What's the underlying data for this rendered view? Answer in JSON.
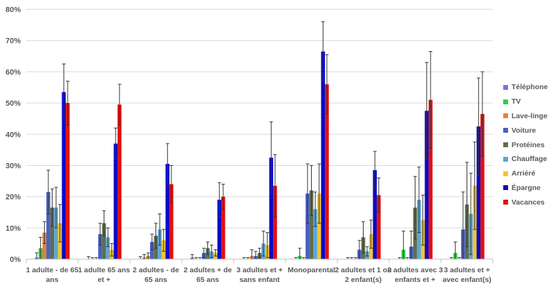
{
  "chart_data": {
    "type": "bar",
    "title": "",
    "xlabel": "",
    "ylabel": "",
    "ylim": [
      0,
      80
    ],
    "y_ticks": [
      "0%",
      "10%",
      "20%",
      "30%",
      "40%",
      "50%",
      "60%",
      "70%",
      "80%"
    ],
    "grid": true,
    "legend_position": "right",
    "categories": [
      [
        "1 adulte - de 65",
        "ans"
      ],
      [
        "1 adulte 65 ans",
        "et +"
      ],
      [
        "2 adultes - de",
        "65 ans"
      ],
      [
        "2 adultes + de",
        "65 ans"
      ],
      [
        "3 adultes et +",
        "sans enfant"
      ],
      [
        "Monoparental"
      ],
      [
        "2 adultes et 1 ou",
        "2 enfant(s)"
      ],
      [
        "2 adultes avec 3",
        "enfants et +"
      ],
      [
        "3 adultes et +",
        "avec enfant(s)"
      ]
    ],
    "series": [
      {
        "name": "Téléphone",
        "color": "#8e6bd8",
        "values": [
          0.5,
          0.0,
          0.0,
          0.5,
          0.0,
          0.0,
          0.0,
          0.0,
          0.0
        ],
        "errors": [
          1.5,
          0.8,
          0.8,
          1.0,
          0.5,
          0.5,
          0.5,
          0.5,
          0.5
        ]
      },
      {
        "name": "TV",
        "color": "#2ecc4a",
        "values": [
          3.5,
          0.0,
          0.5,
          0.0,
          0.0,
          1.0,
          0.0,
          3.0,
          2.0
        ],
        "errors": [
          3.5,
          0.5,
          1.0,
          0.5,
          0.5,
          2.5,
          0.5,
          6.0,
          3.5
        ]
      },
      {
        "name": "Lave-linge",
        "color": "#ed7d31",
        "values": [
          8.5,
          0.0,
          1.0,
          0.0,
          1.0,
          0.0,
          0.0,
          0.0,
          0.0
        ],
        "errors": [
          3.5,
          0.5,
          1.0,
          0.5,
          2.0,
          0.5,
          0.5,
          0.5,
          0.5
        ]
      },
      {
        "name": "Voiture",
        "color": "#4a5fc1",
        "values": [
          21.5,
          8.0,
          5.5,
          2.0,
          1.0,
          21.0,
          3.0,
          4.0,
          9.5
        ],
        "errors": [
          7.0,
          3.5,
          2.5,
          1.5,
          1.5,
          9.5,
          3.0,
          5.0,
          12.0
        ]
      },
      {
        "name": "Protéines",
        "color": "#5e6e50",
        "values": [
          16.5,
          11.5,
          7.5,
          3.5,
          2.0,
          22.0,
          7.0,
          16.5,
          17.5
        ],
        "errors": [
          6.0,
          4.0,
          4.0,
          2.0,
          1.5,
          8.0,
          5.0,
          10.0,
          13.5
        ]
      },
      {
        "name": "Chauffage",
        "color": "#5ba7d8",
        "values": [
          16.5,
          7.0,
          9.5,
          2.5,
          5.0,
          16.0,
          2.5,
          19.0,
          14.5
        ],
        "errors": [
          6.5,
          3.0,
          5.0,
          2.0,
          4.0,
          5.5,
          1.5,
          10.5,
          13.0
        ]
      },
      {
        "name": "Arriéré",
        "color": "#f4c430",
        "values": [
          11.5,
          3.0,
          6.0,
          2.0,
          4.5,
          21.0,
          8.0,
          12.5,
          23.5
        ],
        "errors": [
          6.0,
          2.0,
          3.5,
          1.0,
          4.0,
          9.5,
          4.5,
          8.0,
          14.0
        ]
      },
      {
        "name": "Épargne",
        "color": "#0a0ac8",
        "values": [
          53.5,
          37.0,
          30.5,
          19.0,
          32.5,
          66.5,
          28.5,
          47.5,
          42.5
        ],
        "errors": [
          9.0,
          5.0,
          6.5,
          5.5,
          11.5,
          9.5,
          6.0,
          15.5,
          15.5
        ]
      },
      {
        "name": "Vacances",
        "color": "#e01010",
        "values": [
          50.0,
          49.5,
          24.0,
          20.0,
          23.5,
          56.0,
          20.5,
          51.0,
          46.5
        ],
        "errors": [
          7.0,
          6.5,
          6.0,
          4.0,
          10.0,
          9.5,
          5.5,
          15.5,
          13.5
        ]
      }
    ]
  }
}
